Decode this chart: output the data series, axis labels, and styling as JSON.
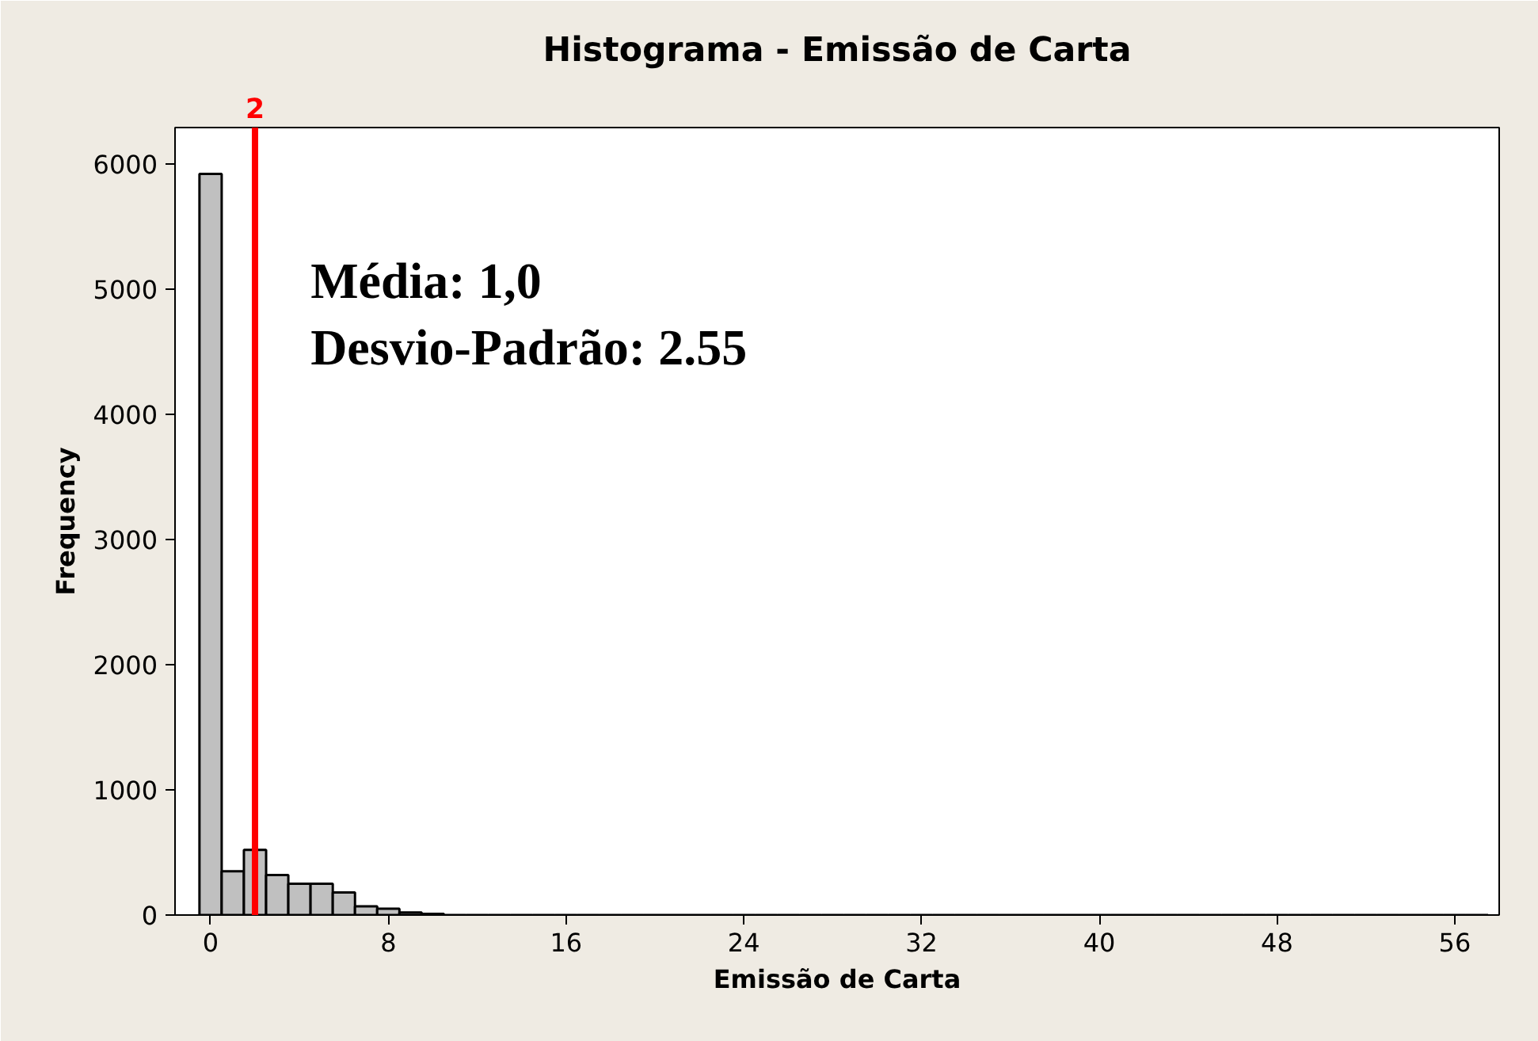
{
  "chart_data": {
    "type": "histogram",
    "title": "Histograma - Emissão de Carta",
    "xlabel": "Emissão de Carta",
    "ylabel": "Frequency",
    "bins": [
      -0.5,
      0.5,
      1.5,
      2.5,
      3.5,
      4.5,
      5.5,
      6.5,
      7.5,
      8.5,
      9.5,
      10.5,
      11.5,
      12.5,
      13.5,
      14.5,
      15.5,
      16.5,
      17.5,
      18.5,
      19.5,
      20.5,
      21.5,
      22.5,
      23.5,
      24.5,
      25.5,
      26.5,
      27.5,
      28.5,
      29.5,
      30.5,
      31.5,
      32.5,
      33.5,
      34.5,
      35.5,
      36.5,
      37.5,
      38.5,
      39.5,
      40.5,
      41.5,
      42.5,
      43.5,
      44.5,
      45.5,
      46.5,
      47.5,
      48.5,
      49.5,
      50.5,
      51.5,
      52.5,
      53.5,
      54.5,
      55.5,
      56.5,
      57.5
    ],
    "values": [
      5920,
      350,
      520,
      320,
      250,
      250,
      180,
      70,
      50,
      20,
      10,
      0,
      0,
      0,
      0,
      0,
      0,
      0,
      0,
      0,
      0,
      0,
      0,
      0,
      0,
      0,
      0,
      0,
      0,
      0,
      0,
      0,
      0,
      0,
      0,
      0,
      0,
      0,
      0,
      0,
      0,
      0,
      0,
      0,
      0,
      0,
      0,
      0,
      0,
      0,
      0,
      0,
      0,
      0,
      0,
      0,
      0,
      0
    ],
    "color": "#c0c0c0",
    "xlim": [
      -1.6,
      58
    ],
    "ylim": [
      0,
      6290
    ],
    "xticks": [
      0,
      8,
      16,
      24,
      32,
      40,
      48,
      56
    ],
    "yticks": [
      0,
      1000,
      2000,
      3000,
      4000,
      5000,
      6000
    ],
    "grid": false,
    "ref_lines": [
      {
        "axis": "x",
        "value": 2,
        "label": "2",
        "color": "#ff0000"
      }
    ],
    "annotations": [
      "Média: 1,0",
      "Desvio-Padrão: 2.55"
    ]
  }
}
